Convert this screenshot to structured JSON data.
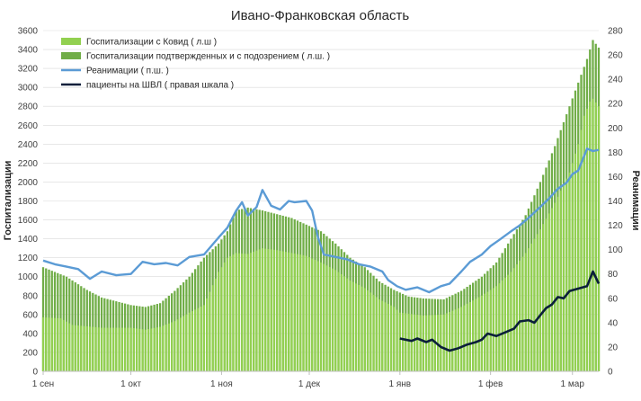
{
  "chart_data": {
    "type": "bar",
    "title": "Ивано-Франковская область",
    "ylabel": "Госпитализации",
    "y2label": "Реанимации",
    "ylim": [
      0,
      3600
    ],
    "y2lim": [
      0,
      280
    ],
    "yticks": [
      0,
      200,
      400,
      600,
      800,
      1000,
      1200,
      1400,
      1600,
      1800,
      2000,
      2200,
      2400,
      2600,
      2800,
      3000,
      3200,
      3400,
      3600
    ],
    "y2ticks": [
      0,
      20,
      40,
      60,
      80,
      100,
      120,
      140,
      160,
      180,
      200,
      220,
      240,
      260,
      280
    ],
    "x_tick_labels": [
      {
        "label": "1 сен",
        "day": 0
      },
      {
        "label": "1 окт",
        "day": 30
      },
      {
        "label": "1 ноя",
        "day": 61
      },
      {
        "label": "1 дек",
        "day": 91
      },
      {
        "label": "1 янв",
        "day": 122
      },
      {
        "label": "1 фев",
        "day": 153
      },
      {
        "label": "1 мар",
        "day": 181
      }
    ],
    "x_days": 190,
    "legend_position": "top-left",
    "colors": {
      "covid": "#92D050",
      "suspected": "#70AD47",
      "icu": "#5B9BD5",
      "ventilator": "#0B1F3A"
    },
    "series": [
      {
        "name": "Госпитализации с Ковид ( л.ш )",
        "kind": "bar",
        "axis": "left",
        "color": "#92D050",
        "points": [
          [
            0,
            570
          ],
          [
            6,
            560
          ],
          [
            10,
            490
          ],
          [
            20,
            460
          ],
          [
            30,
            460
          ],
          [
            35,
            440
          ],
          [
            40,
            470
          ],
          [
            45,
            530
          ],
          [
            50,
            620
          ],
          [
            55,
            700
          ],
          [
            60,
            1050
          ],
          [
            63,
            1200
          ],
          [
            66,
            1250
          ],
          [
            70,
            1240
          ],
          [
            75,
            1300
          ],
          [
            80,
            1280
          ],
          [
            85,
            1250
          ],
          [
            90,
            1220
          ],
          [
            95,
            1150
          ],
          [
            100,
            1070
          ],
          [
            105,
            960
          ],
          [
            110,
            880
          ],
          [
            115,
            760
          ],
          [
            120,
            680
          ],
          [
            122,
            620
          ],
          [
            130,
            590
          ],
          [
            137,
            600
          ],
          [
            143,
            680
          ],
          [
            150,
            800
          ],
          [
            155,
            900
          ],
          [
            160,
            1050
          ],
          [
            165,
            1250
          ],
          [
            170,
            1500
          ],
          [
            175,
            1780
          ],
          [
            180,
            2100
          ],
          [
            183,
            2400
          ],
          [
            185,
            2700
          ],
          [
            187,
            2850
          ],
          [
            188,
            2880
          ],
          [
            190,
            2800
          ]
        ]
      },
      {
        "name": "Госпитализации подтвержденных и с подозрением ( л.ш. )",
        "kind": "bar",
        "axis": "left",
        "color": "#70AD47",
        "points": [
          [
            0,
            1100
          ],
          [
            8,
            1000
          ],
          [
            15,
            860
          ],
          [
            20,
            780
          ],
          [
            30,
            700
          ],
          [
            35,
            680
          ],
          [
            40,
            720
          ],
          [
            45,
            850
          ],
          [
            50,
            1000
          ],
          [
            55,
            1200
          ],
          [
            60,
            1350
          ],
          [
            63,
            1480
          ],
          [
            66,
            1700
          ],
          [
            70,
            1730
          ],
          [
            75,
            1700
          ],
          [
            80,
            1660
          ],
          [
            85,
            1620
          ],
          [
            90,
            1550
          ],
          [
            95,
            1480
          ],
          [
            100,
            1350
          ],
          [
            105,
            1200
          ],
          [
            110,
            1100
          ],
          [
            115,
            950
          ],
          [
            120,
            860
          ],
          [
            125,
            790
          ],
          [
            130,
            770
          ],
          [
            137,
            760
          ],
          [
            143,
            850
          ],
          [
            150,
            1000
          ],
          [
            155,
            1150
          ],
          [
            160,
            1400
          ],
          [
            165,
            1650
          ],
          [
            170,
            2000
          ],
          [
            175,
            2380
          ],
          [
            180,
            2800
          ],
          [
            183,
            3050
          ],
          [
            186,
            3300
          ],
          [
            188,
            3500
          ],
          [
            190,
            3420
          ]
        ]
      },
      {
        "name": "Реанимации ( п.ш. )",
        "kind": "line",
        "axis": "right",
        "color": "#5B9BD5",
        "points": [
          [
            0,
            91
          ],
          [
            4,
            88
          ],
          [
            8,
            86
          ],
          [
            12,
            84
          ],
          [
            16,
            76
          ],
          [
            20,
            82
          ],
          [
            25,
            79
          ],
          [
            30,
            80
          ],
          [
            34,
            90
          ],
          [
            38,
            88
          ],
          [
            42,
            89
          ],
          [
            46,
            87
          ],
          [
            50,
            94
          ],
          [
            55,
            96
          ],
          [
            60,
            110
          ],
          [
            63,
            118
          ],
          [
            66,
            132
          ],
          [
            68,
            139
          ],
          [
            70,
            128
          ],
          [
            73,
            135
          ],
          [
            75,
            149
          ],
          [
            78,
            136
          ],
          [
            81,
            133
          ],
          [
            84,
            140
          ],
          [
            86,
            139
          ],
          [
            90,
            140
          ],
          [
            92,
            132
          ],
          [
            94,
            110
          ],
          [
            96,
            96
          ],
          [
            100,
            94
          ],
          [
            104,
            92
          ],
          [
            108,
            88
          ],
          [
            112,
            86
          ],
          [
            116,
            82
          ],
          [
            118,
            75
          ],
          [
            121,
            70
          ],
          [
            124,
            67
          ],
          [
            128,
            69
          ],
          [
            132,
            65
          ],
          [
            136,
            70
          ],
          [
            139,
            72
          ],
          [
            143,
            82
          ],
          [
            146,
            90
          ],
          [
            150,
            96
          ],
          [
            153,
            103
          ],
          [
            156,
            108
          ],
          [
            160,
            115
          ],
          [
            163,
            120
          ],
          [
            166,
            126
          ],
          [
            170,
            135
          ],
          [
            173,
            142
          ],
          [
            176,
            150
          ],
          [
            179,
            155
          ],
          [
            181,
            162
          ],
          [
            183,
            165
          ],
          [
            186,
            183
          ],
          [
            188,
            181
          ],
          [
            190,
            182
          ]
        ]
      },
      {
        "name": "пациенты на ШВЛ ( правая шкала )",
        "kind": "line",
        "axis": "right",
        "color": "#0B1F3A",
        "points": [
          [
            122,
            27
          ],
          [
            126,
            25
          ],
          [
            128,
            27
          ],
          [
            131,
            24
          ],
          [
            133,
            26
          ],
          [
            136,
            20
          ],
          [
            139,
            17
          ],
          [
            142,
            19
          ],
          [
            145,
            22
          ],
          [
            148,
            24
          ],
          [
            150,
            26
          ],
          [
            152,
            31
          ],
          [
            155,
            29
          ],
          [
            158,
            32
          ],
          [
            161,
            35
          ],
          [
            163,
            41
          ],
          [
            166,
            42
          ],
          [
            168,
            40
          ],
          [
            170,
            46
          ],
          [
            172,
            52
          ],
          [
            174,
            55
          ],
          [
            176,
            61
          ],
          [
            178,
            60
          ],
          [
            180,
            66
          ],
          [
            183,
            68
          ],
          [
            186,
            70
          ],
          [
            188,
            82
          ],
          [
            190,
            72
          ]
        ]
      }
    ]
  }
}
